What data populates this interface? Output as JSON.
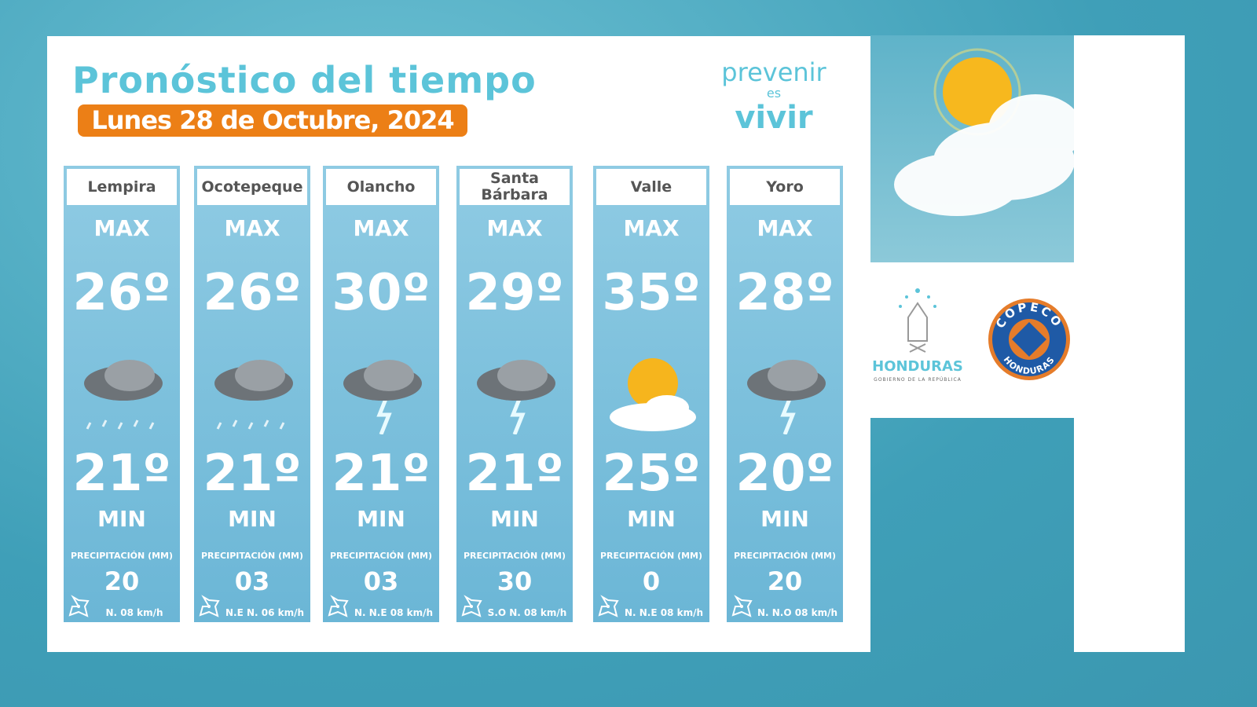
{
  "title": "Pronóstico del tiempo",
  "date": "Lunes 28 de Octubre, 2024",
  "brand": {
    "line1": "prevenir",
    "line2": "es",
    "line3": "vivir"
  },
  "labels": {
    "max": "MAX",
    "min": "MIN",
    "precip": "PRECIPITACIÓN (MM)"
  },
  "regions": [
    {
      "name": "Lempira",
      "max": "26º",
      "min": "21º",
      "precip": "20",
      "wind": "N.  08 km/h",
      "icon": "rain-cloud-icon"
    },
    {
      "name": "Ocotepeque",
      "max": "26º",
      "min": "21º",
      "precip": "03",
      "wind": "N.E N.  06 km/h",
      "icon": "rain-cloud-icon"
    },
    {
      "name": "Olancho",
      "max": "30º",
      "min": "21º",
      "precip": "03",
      "wind": "N.  N.E 08 km/h",
      "icon": "storm-cloud-icon"
    },
    {
      "name": "Santa Bárbara",
      "max": "29º",
      "min": "21º",
      "precip": "30",
      "wind": "S.O  N.  08 km/h",
      "icon": "storm-cloud-icon"
    },
    {
      "name": "Valle",
      "max": "35º",
      "min": "25º",
      "precip": "0",
      "wind": "N.  N.E 08 km/h",
      "icon": "sun-cloud-icon"
    },
    {
      "name": "Yoro",
      "max": "28º",
      "min": "20º",
      "precip": "20",
      "wind": "N.  N.O 08 km/h",
      "icon": "storm-cloud-icon"
    }
  ],
  "logos": {
    "honduras": "HONDURAS",
    "gobierno": "GOBIERNO DE LA REPÚBLICA",
    "copeco": "COPECO",
    "copeco_sub": "HONDURAS"
  },
  "colors": {
    "accent": "#5cc4d9",
    "orange": "#ec7f16",
    "copeco_blue": "#1f5aa6"
  }
}
